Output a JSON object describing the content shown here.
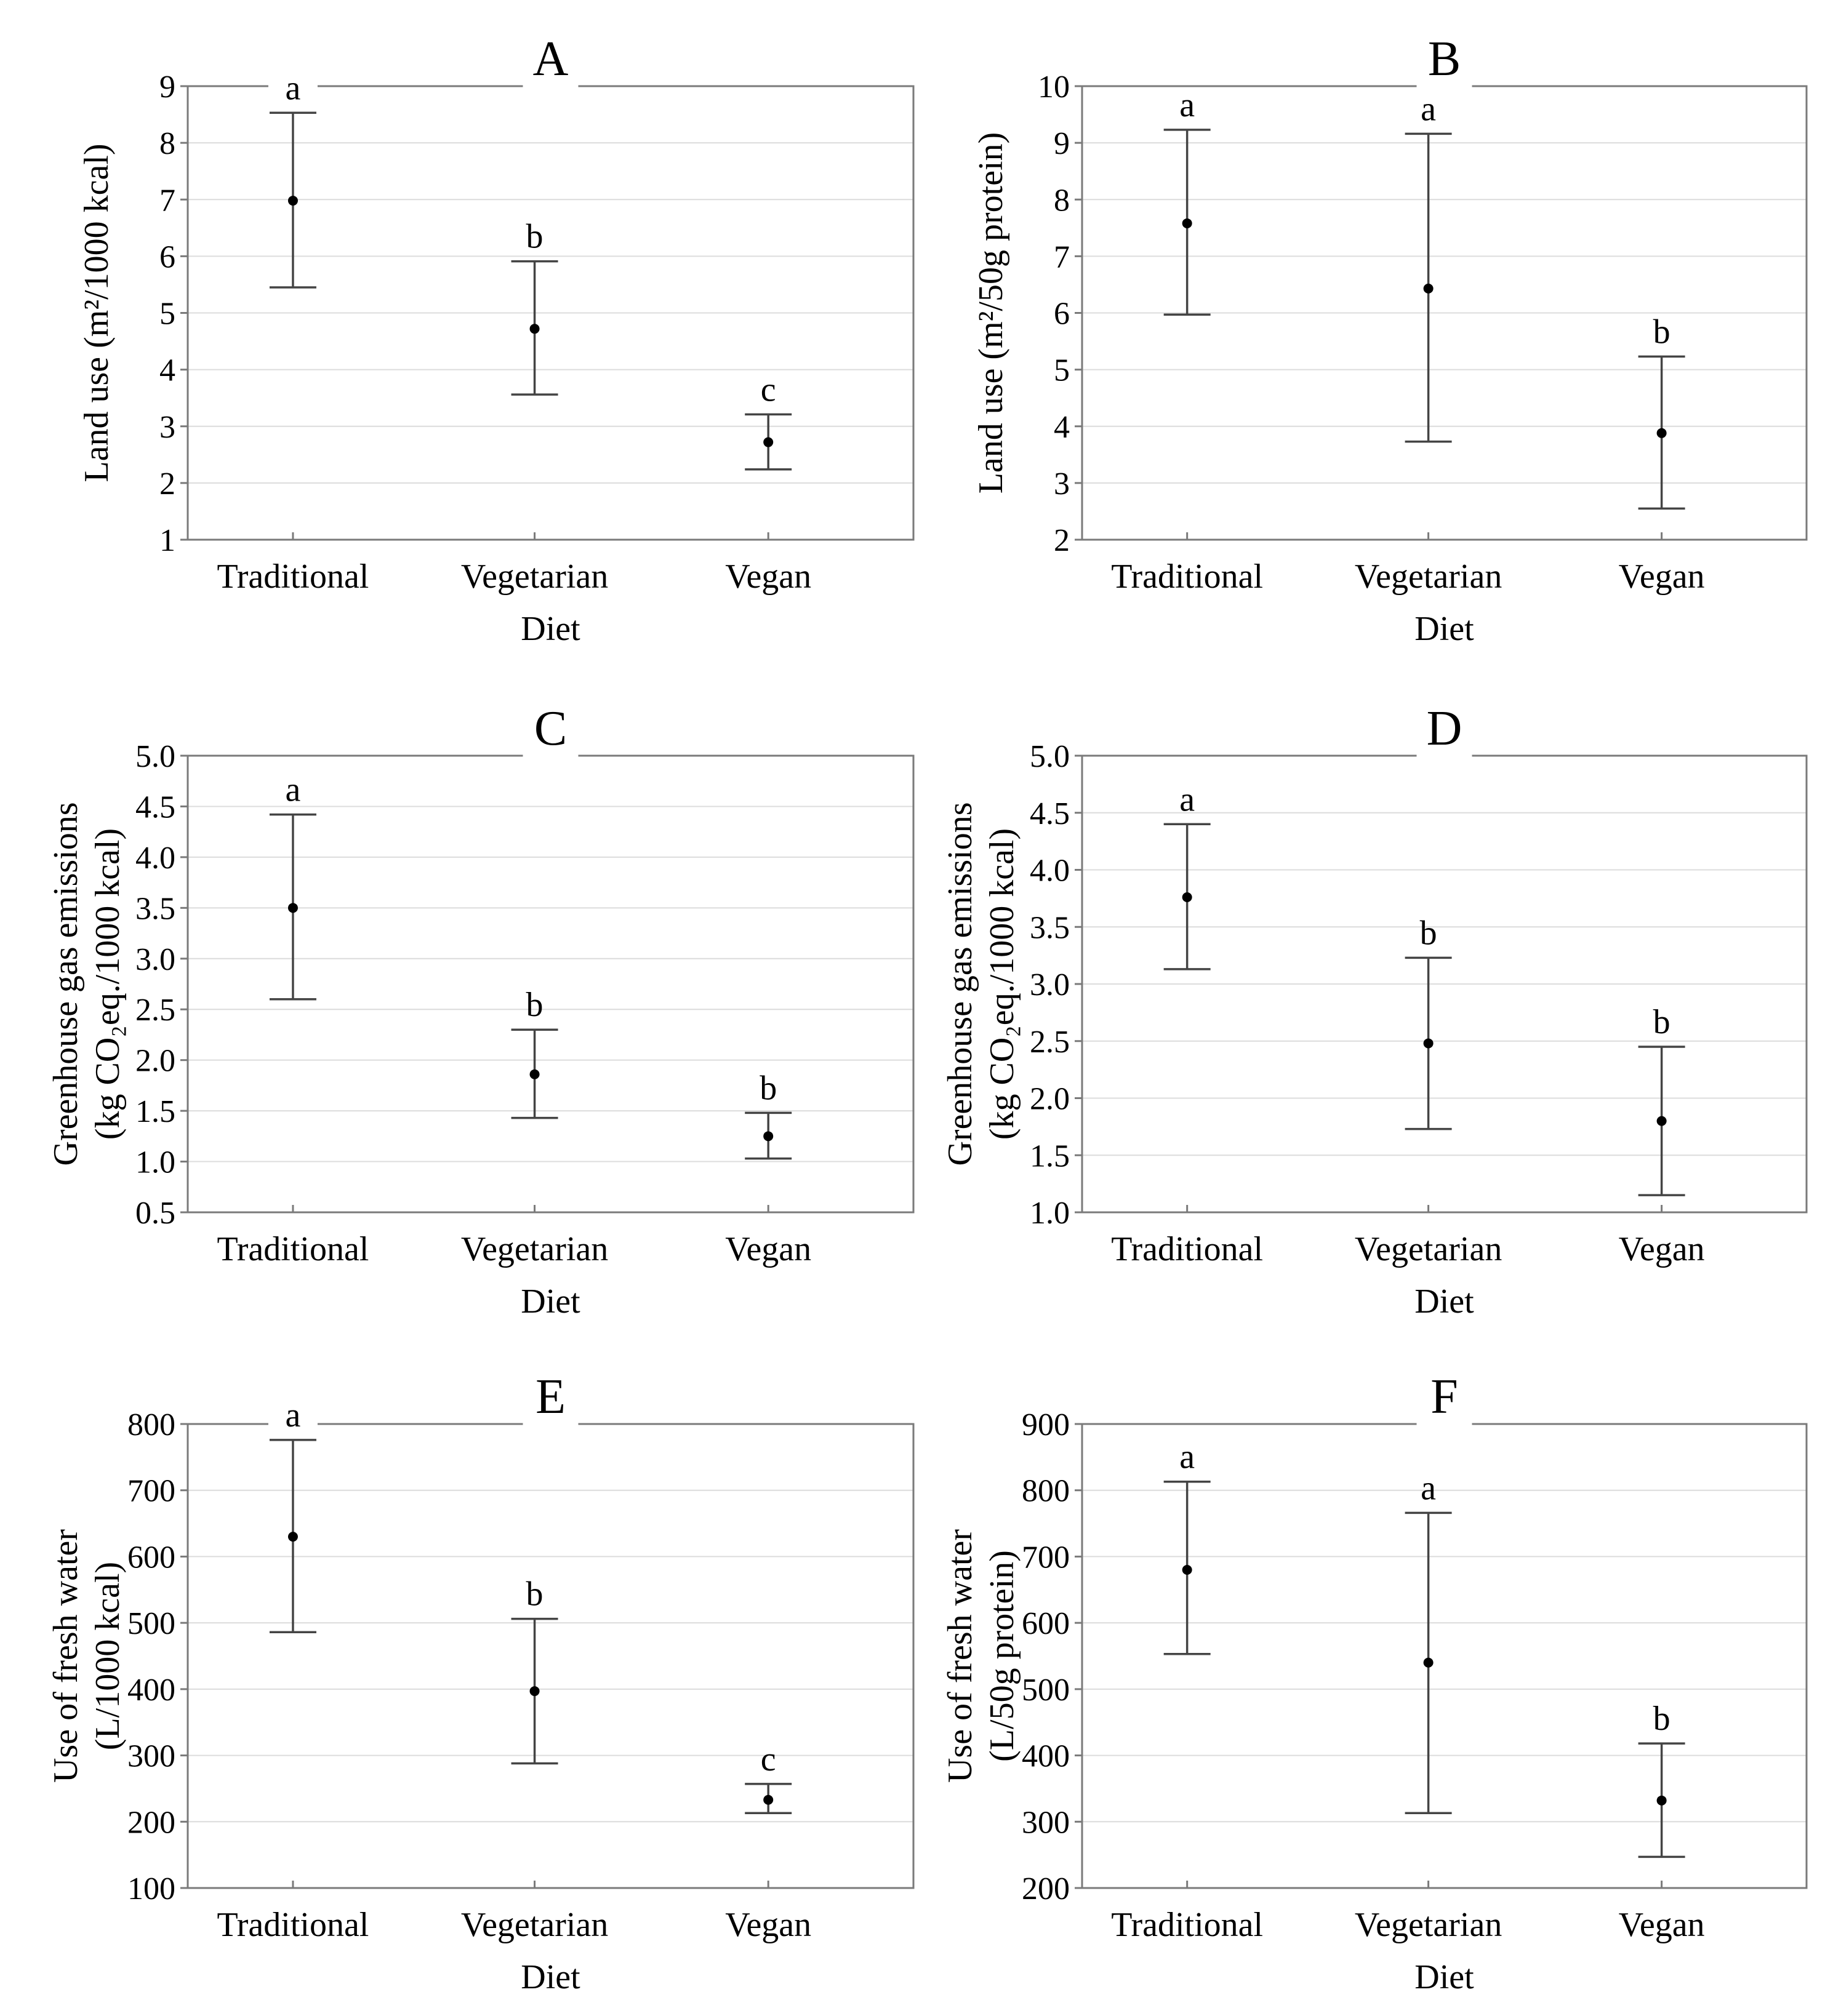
{
  "colors": {
    "frame": "#7a7a7a",
    "grid": "#dcdcdc",
    "errorbar": "#444444",
    "point": "#000000"
  },
  "chart_data": [
    {
      "panel": "A",
      "type": "errorbar",
      "xlabel": "Diet",
      "ylabel_lines": [
        "Land use (m²/1000 kcal)"
      ],
      "ylim": [
        1,
        9
      ],
      "yticks": [
        1,
        2,
        3,
        4,
        5,
        6,
        7,
        8,
        9
      ],
      "yticklabels": [
        "1",
        "2",
        "3",
        "4",
        "5",
        "6",
        "7",
        "8",
        "9"
      ],
      "categories": [
        "Traditional",
        "Vegetarian",
        "Vegan"
      ],
      "means": [
        6.98,
        4.72,
        2.72
      ],
      "lower": [
        5.45,
        3.56,
        2.24
      ],
      "upper": [
        8.53,
        5.91,
        3.21
      ],
      "letters": [
        "a",
        "b",
        "c"
      ]
    },
    {
      "panel": "B",
      "type": "errorbar",
      "xlabel": "Diet",
      "ylabel_lines": [
        "Land use (m²/50g protein)"
      ],
      "ylim": [
        2,
        10
      ],
      "yticks": [
        2,
        3,
        4,
        5,
        6,
        7,
        8,
        9,
        10
      ],
      "yticklabels": [
        "2",
        "3",
        "4",
        "5",
        "6",
        "7",
        "8",
        "9",
        "10"
      ],
      "categories": [
        "Traditional",
        "Vegetarian",
        "Vegan"
      ],
      "means": [
        7.58,
        6.43,
        3.88
      ],
      "lower": [
        5.97,
        3.73,
        2.55
      ],
      "upper": [
        9.23,
        9.16,
        5.23
      ],
      "letters": [
        "a",
        "a",
        "b"
      ]
    },
    {
      "panel": "C",
      "type": "errorbar",
      "xlabel": "Diet",
      "ylabel_lines": [
        "Greenhouse gas emissions",
        "(kg CO₂eq./1000 kcal)"
      ],
      "ylim": [
        0.5,
        5.0
      ],
      "yticks": [
        0.5,
        1.0,
        1.5,
        2.0,
        2.5,
        3.0,
        3.5,
        4.0,
        4.5,
        5.0
      ],
      "yticklabels": [
        "0.5",
        "1.0",
        "1.5",
        "2.0",
        "2.5",
        "3.0",
        "3.5",
        "4.0",
        "4.5",
        "5.0"
      ],
      "categories": [
        "Traditional",
        "Vegetarian",
        "Vegan"
      ],
      "means": [
        3.5,
        1.86,
        1.25
      ],
      "lower": [
        2.6,
        1.43,
        1.03
      ],
      "upper": [
        4.42,
        2.3,
        1.48
      ],
      "letters": [
        "a",
        "b",
        "b"
      ]
    },
    {
      "panel": "D",
      "type": "errorbar",
      "xlabel": "Diet",
      "ylabel_lines": [
        "Greenhouse gas emissions",
        "(kg CO₂eq./1000 kcal)"
      ],
      "ylim": [
        1.0,
        5.0
      ],
      "yticks": [
        1.0,
        1.5,
        2.0,
        2.5,
        3.0,
        3.5,
        4.0,
        4.5,
        5.0
      ],
      "yticklabels": [
        "1.0",
        "1.5",
        "2.0",
        "2.5",
        "3.0",
        "3.5",
        "4.0",
        "4.5",
        "5.0"
      ],
      "categories": [
        "Traditional",
        "Vegetarian",
        "Vegan"
      ],
      "means": [
        3.76,
        2.48,
        1.8
      ],
      "lower": [
        3.13,
        1.73,
        1.15
      ],
      "upper": [
        4.4,
        3.23,
        2.45
      ],
      "letters": [
        "a",
        "b",
        "b"
      ]
    },
    {
      "panel": "E",
      "type": "errorbar",
      "xlabel": "Diet",
      "ylabel_lines": [
        "Use of fresh water",
        "(L/1000 kcal)"
      ],
      "ylim": [
        100,
        800
      ],
      "yticks": [
        100,
        200,
        300,
        400,
        500,
        600,
        700,
        800
      ],
      "yticklabels": [
        "100",
        "200",
        "300",
        "400",
        "500",
        "600",
        "700",
        "800"
      ],
      "categories": [
        "Traditional",
        "Vegetarian",
        "Vegan"
      ],
      "means": [
        630,
        397,
        233
      ],
      "lower": [
        486,
        288,
        213
      ],
      "upper": [
        776,
        506,
        257
      ],
      "letters": [
        "a",
        "b",
        "c"
      ]
    },
    {
      "panel": "F",
      "type": "errorbar",
      "xlabel": "Diet",
      "ylabel_lines": [
        "Use of fresh water",
        "(L/50g protein)"
      ],
      "ylim": [
        200,
        900
      ],
      "yticks": [
        200,
        300,
        400,
        500,
        600,
        700,
        800,
        900
      ],
      "yticklabels": [
        "200",
        "300",
        "400",
        "500",
        "600",
        "700",
        "800",
        "900"
      ],
      "categories": [
        "Traditional",
        "Vegetarian",
        "Vegan"
      ],
      "means": [
        680,
        540,
        332
      ],
      "lower": [
        553,
        313,
        247
      ],
      "upper": [
        813,
        766,
        418
      ],
      "letters": [
        "a",
        "a",
        "b"
      ]
    }
  ]
}
